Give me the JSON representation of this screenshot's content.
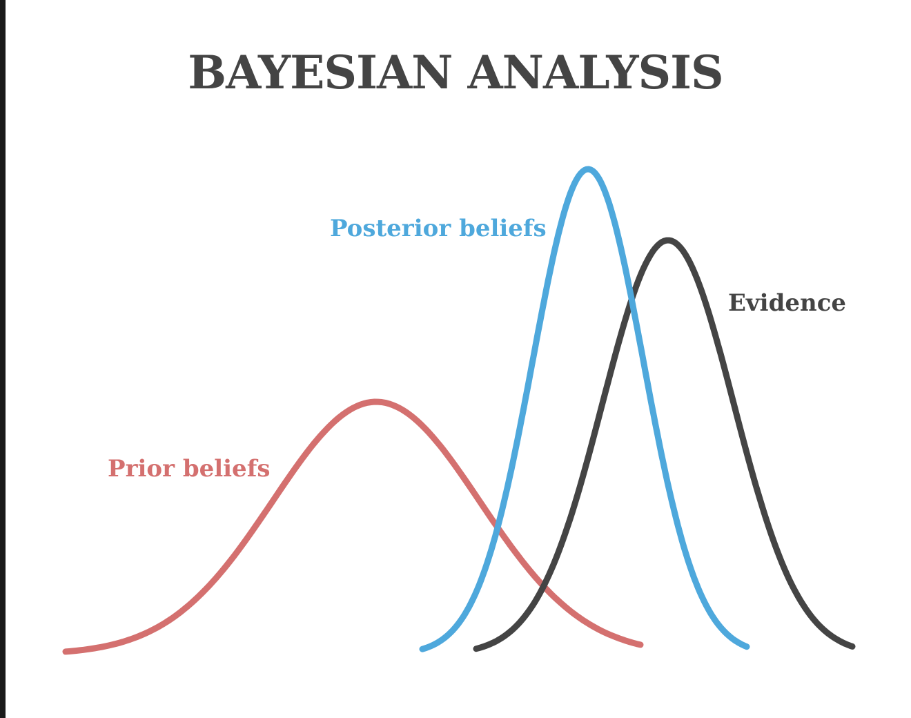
{
  "title": "BAYESIAN ANALYSIS",
  "curves": [
    {
      "id": "prior",
      "label": "Prior beliefs",
      "color": "#d4706f"
    },
    {
      "id": "posterior",
      "label": "Posterior beliefs",
      "color": "#4ea8dc"
    },
    {
      "id": "evidence",
      "label": "Evidence",
      "color": "#444444"
    }
  ]
}
